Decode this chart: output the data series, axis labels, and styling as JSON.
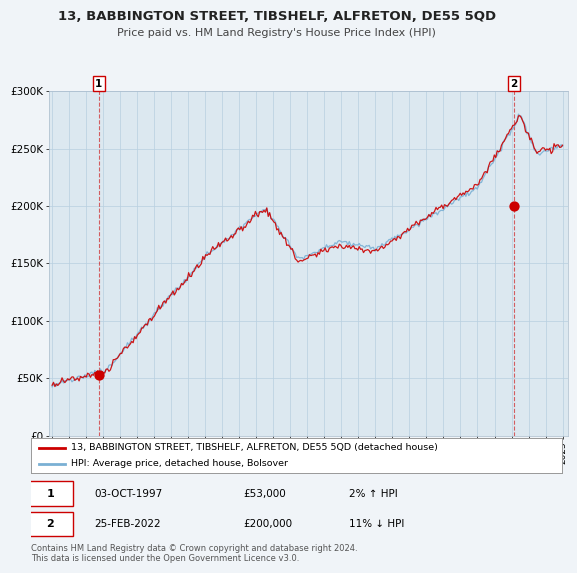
{
  "title": "13, BABBINGTON STREET, TIBSHELF, ALFRETON, DE55 5QD",
  "subtitle": "Price paid vs. HM Land Registry's House Price Index (HPI)",
  "ylim": [
    0,
    300000
  ],
  "yticks": [
    0,
    50000,
    100000,
    150000,
    200000,
    250000,
    300000
  ],
  "ytick_labels": [
    "£0",
    "£50K",
    "£100K",
    "£150K",
    "£200K",
    "£250K",
    "£300K"
  ],
  "sale1_date": 1997.75,
  "sale1_price": 53000,
  "sale2_date": 2022.15,
  "sale2_price": 200000,
  "line_color_price": "#cc0000",
  "line_color_hpi": "#7ab0d4",
  "legend_price_label": "13, BABBINGTON STREET, TIBSHELF, ALFRETON, DE55 5QD (detached house)",
  "legend_hpi_label": "HPI: Average price, detached house, Bolsover",
  "annotation1_date": "03-OCT-1997",
  "annotation1_price": "£53,000",
  "annotation1_hpi": "2% ↑ HPI",
  "annotation2_date": "25-FEB-2022",
  "annotation2_price": "£200,000",
  "annotation2_hpi": "11% ↓ HPI",
  "footer": "Contains HM Land Registry data © Crown copyright and database right 2024.\nThis data is licensed under the Open Government Licence v3.0.",
  "bg_color": "#f0f4f8",
  "plot_bg_color": "#dce8f0",
  "grid_color": "#b8cfe0"
}
